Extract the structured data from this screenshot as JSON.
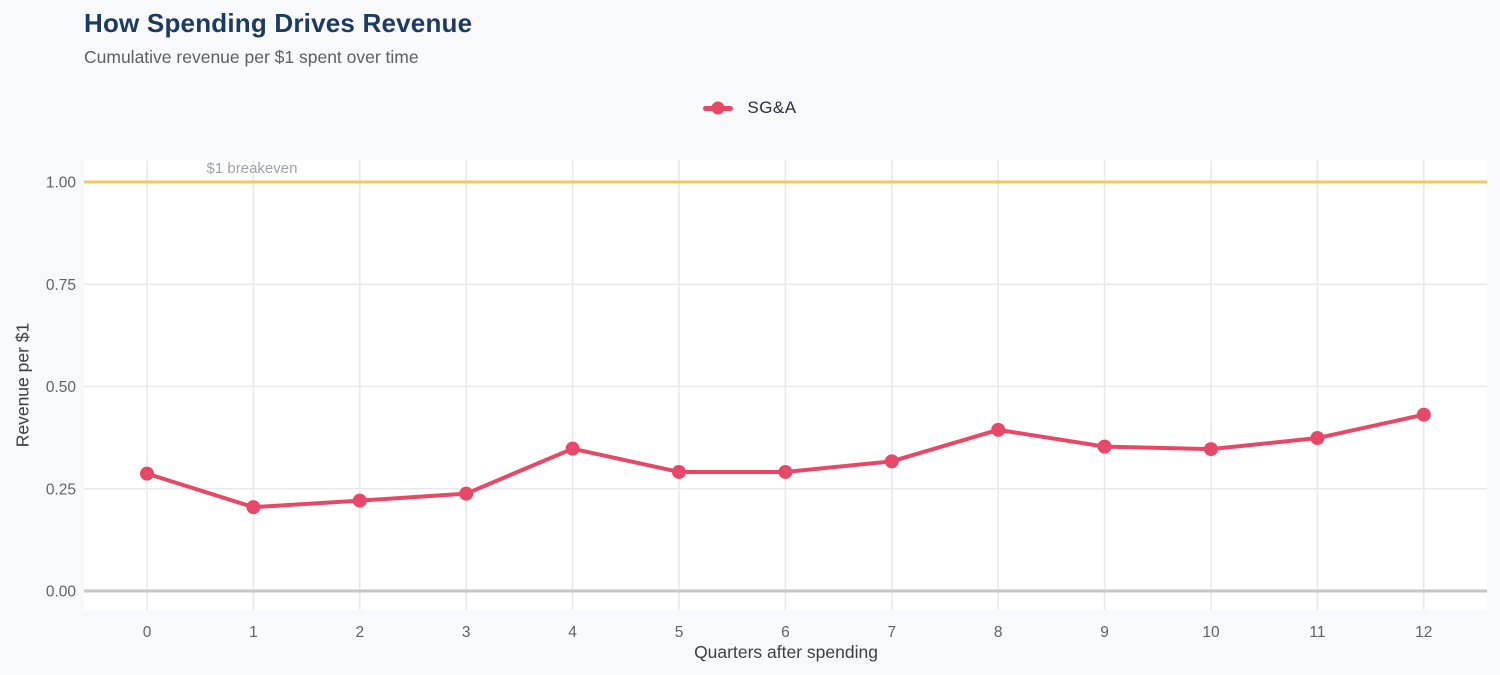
{
  "header": {
    "title": "How Spending Drives Revenue",
    "subtitle": "Cumulative revenue per $1 spent over time"
  },
  "chart_data": {
    "type": "line",
    "title": "How Spending Drives Revenue",
    "subtitle": "Cumulative revenue per $1 spent over time",
    "xlabel": "Quarters after spending",
    "ylabel": "Revenue per $1",
    "x": [
      0,
      1,
      2,
      3,
      4,
      5,
      6,
      7,
      8,
      9,
      10,
      11,
      12
    ],
    "series": [
      {
        "name": "SG&A",
        "color": "#e84868",
        "values": [
          0.287,
          0.205,
          0.221,
          0.238,
          0.348,
          0.291,
          0.291,
          0.317,
          0.394,
          0.353,
          0.347,
          0.374,
          0.431
        ]
      }
    ],
    "yticks": [
      0,
      0.25,
      0.5,
      0.75,
      1.0
    ],
    "ytick_labels": [
      "0.00",
      "0.25",
      "0.50",
      "0.75",
      "1.00"
    ],
    "ylim": [
      -0.05,
      1.05
    ],
    "xlim": [
      -0.6,
      12.6
    ],
    "grid": true,
    "legend_position": "top-center",
    "reference_line": {
      "value": 1.0,
      "label": "$1 breakeven",
      "color": "#f3ca56"
    },
    "colors": {
      "gridline": "#e9e9e9",
      "zero_line": "#c6c6c6",
      "tick_text": "#5f6368",
      "plot_background": "#ffffff",
      "page_background": "#f8f9fb",
      "title_text": "#1d3a60"
    }
  }
}
